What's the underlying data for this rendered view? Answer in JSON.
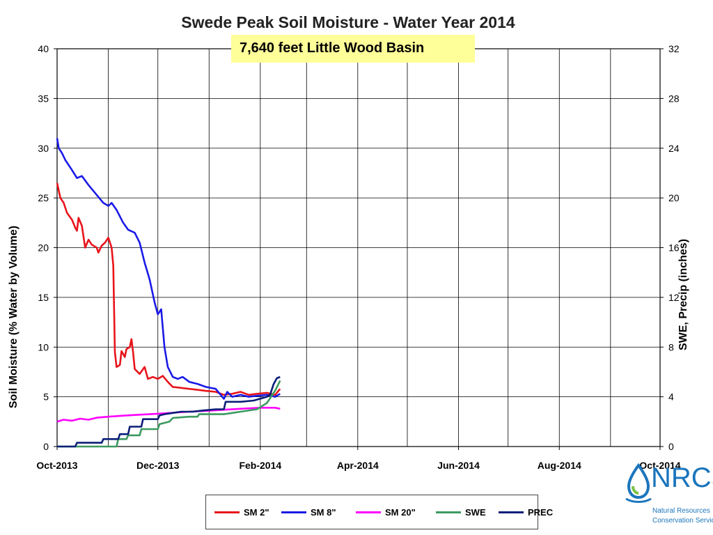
{
  "chart_data": {
    "type": "line",
    "title": "Swede Peak Soil Moisture - Water Year 2014",
    "subtitle": "7,640 feet Little Wood Basin",
    "ylabel": "Soil Moisture (% Water by Volume)",
    "y2label": "SWE, Precip (inches)",
    "ylim": [
      0,
      40
    ],
    "y2lim": [
      0,
      32
    ],
    "yticks": [
      "0",
      "5",
      "10",
      "15",
      "20",
      "25",
      "30",
      "35",
      "40"
    ],
    "y2ticks": [
      "0",
      "4",
      "8",
      "12",
      "16",
      "20",
      "24",
      "28",
      "32"
    ],
    "xlim": [
      "2013-10-01",
      "2014-10-01"
    ],
    "xticks": [
      "Oct-2013",
      "Dec-2013",
      "Feb-2014",
      "Apr-2014",
      "Jun-2014",
      "Aug-2014",
      "Oct-2014"
    ],
    "grid": true,
    "legend_position": "bottom",
    "series": [
      {
        "name": "SM 2\"",
        "axis": "left",
        "color": "#e8141b",
        "points": [
          [
            "2013-10-01",
            26.5
          ],
          [
            "2013-10-03",
            25.0
          ],
          [
            "2013-10-05",
            24.5
          ],
          [
            "2013-10-07",
            23.5
          ],
          [
            "2013-10-10",
            22.8
          ],
          [
            "2013-10-12",
            22.0
          ],
          [
            "2013-10-13",
            21.7
          ],
          [
            "2013-10-14",
            23.0
          ],
          [
            "2013-10-16",
            22.2
          ],
          [
            "2013-10-18",
            20.0
          ],
          [
            "2013-10-20",
            20.8
          ],
          [
            "2013-10-22",
            20.3
          ],
          [
            "2013-10-25",
            20.0
          ],
          [
            "2013-10-26",
            19.5
          ],
          [
            "2013-10-28",
            20.2
          ],
          [
            "2013-10-30",
            20.5
          ],
          [
            "2013-11-01",
            21.0
          ],
          [
            "2013-11-03",
            20.0
          ],
          [
            "2013-11-04",
            18.2
          ],
          [
            "2013-11-05",
            9.5
          ],
          [
            "2013-11-06",
            8.0
          ],
          [
            "2013-11-08",
            8.2
          ],
          [
            "2013-11-09",
            9.6
          ],
          [
            "2013-11-11",
            9.0
          ],
          [
            "2013-11-12",
            9.8
          ],
          [
            "2013-11-14",
            10.0
          ],
          [
            "2013-11-15",
            10.8
          ],
          [
            "2013-11-16",
            9.5
          ],
          [
            "2013-11-17",
            7.8
          ],
          [
            "2013-11-20",
            7.3
          ],
          [
            "2013-11-23",
            8.0
          ],
          [
            "2013-11-25",
            6.8
          ],
          [
            "2013-11-28",
            7.0
          ],
          [
            "2013-12-01",
            6.8
          ],
          [
            "2013-12-04",
            7.1
          ],
          [
            "2013-12-07",
            6.5
          ],
          [
            "2013-12-10",
            6.0
          ],
          [
            "2013-12-15",
            5.9
          ],
          [
            "2013-12-20",
            5.8
          ],
          [
            "2013-12-25",
            5.7
          ],
          [
            "2013-12-30",
            5.6
          ],
          [
            "2014-01-05",
            5.5
          ],
          [
            "2014-01-10",
            5.2
          ],
          [
            "2014-01-15",
            5.3
          ],
          [
            "2014-01-20",
            5.5
          ],
          [
            "2014-01-25",
            5.2
          ],
          [
            "2014-01-30",
            5.3
          ],
          [
            "2014-02-05",
            5.4
          ],
          [
            "2014-02-10",
            5.2
          ],
          [
            "2014-02-13",
            5.8
          ]
        ]
      },
      {
        "name": "SM 8\"",
        "axis": "left",
        "color": "#1a1ae6",
        "points": [
          [
            "2013-10-01",
            31.0
          ],
          [
            "2013-10-02",
            30.0
          ],
          [
            "2013-10-04",
            29.5
          ],
          [
            "2013-10-06",
            28.8
          ],
          [
            "2013-10-10",
            27.8
          ],
          [
            "2013-10-13",
            27.0
          ],
          [
            "2013-10-16",
            27.2
          ],
          [
            "2013-10-20",
            26.3
          ],
          [
            "2013-10-25",
            25.3
          ],
          [
            "2013-10-29",
            24.5
          ],
          [
            "2013-11-01",
            24.2
          ],
          [
            "2013-11-03",
            24.5
          ],
          [
            "2013-11-06",
            23.8
          ],
          [
            "2013-11-10",
            22.5
          ],
          [
            "2013-11-13",
            21.8
          ],
          [
            "2013-11-17",
            21.5
          ],
          [
            "2013-11-20",
            20.5
          ],
          [
            "2013-11-23",
            18.5
          ],
          [
            "2013-11-26",
            16.8
          ],
          [
            "2013-11-29",
            14.5
          ],
          [
            "2013-12-01",
            13.3
          ],
          [
            "2013-12-03",
            13.8
          ],
          [
            "2013-12-05",
            10.0
          ],
          [
            "2013-12-07",
            8.0
          ],
          [
            "2013-12-10",
            7.0
          ],
          [
            "2013-12-13",
            6.8
          ],
          [
            "2013-12-16",
            7.0
          ],
          [
            "2013-12-20",
            6.5
          ],
          [
            "2013-12-25",
            6.3
          ],
          [
            "2013-12-30",
            6.0
          ],
          [
            "2014-01-05",
            5.8
          ],
          [
            "2014-01-10",
            4.8
          ],
          [
            "2014-01-12",
            5.5
          ],
          [
            "2014-01-15",
            5.0
          ],
          [
            "2014-01-20",
            5.2
          ],
          [
            "2014-01-25",
            5.0
          ],
          [
            "2014-01-30",
            5.1
          ],
          [
            "2014-02-05",
            5.2
          ],
          [
            "2014-02-10",
            5.0
          ],
          [
            "2014-02-13",
            5.3
          ]
        ]
      },
      {
        "name": "SM 20\"",
        "axis": "left",
        "color": "#ff00ff",
        "points": [
          [
            "2013-10-01",
            2.5
          ],
          [
            "2013-10-05",
            2.7
          ],
          [
            "2013-10-10",
            2.6
          ],
          [
            "2013-10-15",
            2.8
          ],
          [
            "2013-10-20",
            2.7
          ],
          [
            "2013-10-25",
            2.9
          ],
          [
            "2013-11-01",
            3.0
          ],
          [
            "2013-11-10",
            3.1
          ],
          [
            "2013-11-20",
            3.2
          ],
          [
            "2013-12-01",
            3.3
          ],
          [
            "2013-12-10",
            3.4
          ],
          [
            "2013-12-20",
            3.5
          ],
          [
            "2014-01-01",
            3.6
          ],
          [
            "2014-01-10",
            3.7
          ],
          [
            "2014-01-20",
            3.8
          ],
          [
            "2014-02-01",
            3.9
          ],
          [
            "2014-02-10",
            3.9
          ],
          [
            "2014-02-13",
            3.8
          ]
        ]
      },
      {
        "name": "SWE",
        "axis": "right",
        "color": "#3c9a5f",
        "points": [
          [
            "2013-10-01",
            0.0
          ],
          [
            "2013-11-06",
            0.0
          ],
          [
            "2013-11-07",
            0.6
          ],
          [
            "2013-11-12",
            0.6
          ],
          [
            "2013-11-13",
            0.9
          ],
          [
            "2013-11-20",
            0.9
          ],
          [
            "2013-11-21",
            1.4
          ],
          [
            "2013-12-01",
            1.4
          ],
          [
            "2013-12-02",
            1.8
          ],
          [
            "2013-12-08",
            2.0
          ],
          [
            "2013-12-10",
            2.3
          ],
          [
            "2013-12-20",
            2.4
          ],
          [
            "2013-12-25",
            2.4
          ],
          [
            "2013-12-26",
            2.6
          ],
          [
            "2014-01-10",
            2.6
          ],
          [
            "2014-01-15",
            2.7
          ],
          [
            "2014-01-20",
            2.8
          ],
          [
            "2014-01-30",
            3.0
          ],
          [
            "2014-02-05",
            3.5
          ],
          [
            "2014-02-10",
            4.5
          ],
          [
            "2014-02-13",
            5.3
          ]
        ]
      },
      {
        "name": "PREC",
        "axis": "right",
        "color": "#0a1e78",
        "points": [
          [
            "2013-10-01",
            0.0
          ],
          [
            "2013-10-12",
            0.0
          ],
          [
            "2013-10-13",
            0.3
          ],
          [
            "2013-10-28",
            0.3
          ],
          [
            "2013-10-29",
            0.6
          ],
          [
            "2013-11-07",
            0.6
          ],
          [
            "2013-11-08",
            1.0
          ],
          [
            "2013-11-13",
            1.0
          ],
          [
            "2013-11-14",
            1.6
          ],
          [
            "2013-11-21",
            1.6
          ],
          [
            "2013-11-22",
            2.2
          ],
          [
            "2013-12-01",
            2.2
          ],
          [
            "2013-12-02",
            2.5
          ],
          [
            "2013-12-05",
            2.6
          ],
          [
            "2013-12-10",
            2.7
          ],
          [
            "2013-12-15",
            2.8
          ],
          [
            "2013-12-22",
            2.8
          ],
          [
            "2013-12-28",
            2.9
          ],
          [
            "2014-01-05",
            3.0
          ],
          [
            "2014-01-10",
            3.0
          ],
          [
            "2014-01-11",
            3.6
          ],
          [
            "2014-01-20",
            3.6
          ],
          [
            "2014-01-28",
            3.7
          ],
          [
            "2014-02-05",
            4.0
          ],
          [
            "2014-02-07",
            4.2
          ],
          [
            "2014-02-09",
            5.0
          ],
          [
            "2014-02-11",
            5.5
          ],
          [
            "2014-02-13",
            5.6
          ]
        ]
      }
    ]
  },
  "logo": {
    "word": "NRCS",
    "line1": "Natural Resources",
    "line2": "Conservation Service"
  }
}
